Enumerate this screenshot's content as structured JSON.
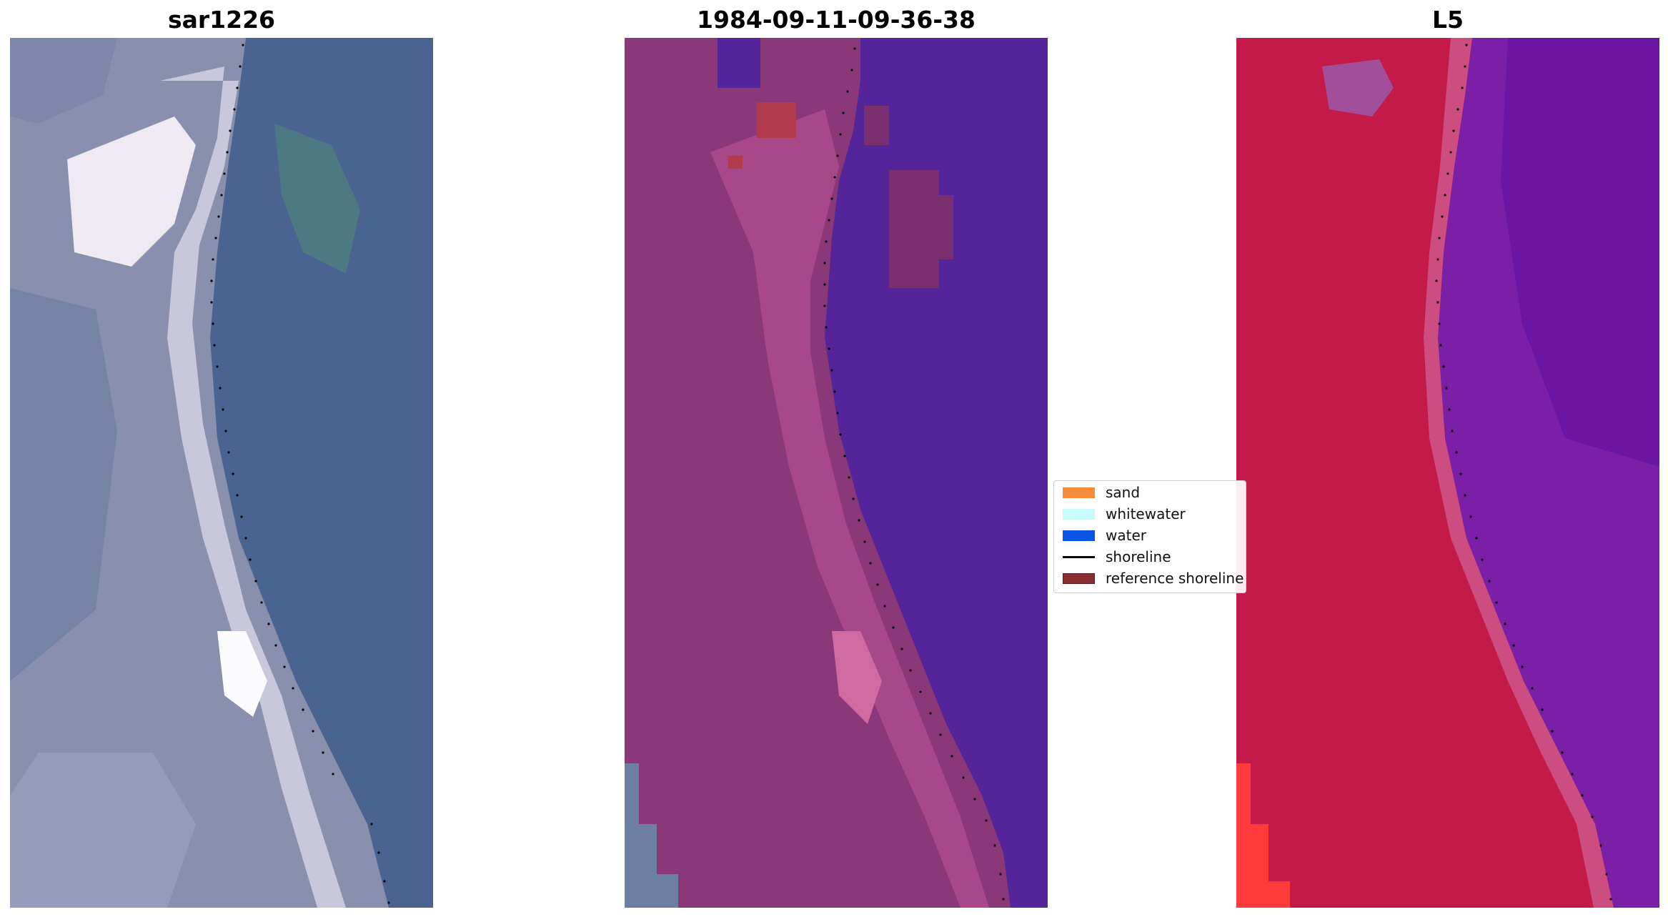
{
  "panels": [
    {
      "title": "sar1226"
    },
    {
      "title": "1984-09-11-09-36-38"
    },
    {
      "title": "L5"
    }
  ],
  "legend": {
    "items": [
      {
        "label": "sand",
        "kind": "patch",
        "color": "#f58d3c"
      },
      {
        "label": "whitewater",
        "kind": "patch",
        "color": "#c8fbfb"
      },
      {
        "label": "water",
        "kind": "patch",
        "color": "#0a55e6"
      },
      {
        "label": "shoreline",
        "kind": "line",
        "color": "#000000"
      },
      {
        "label": "reference shoreline",
        "kind": "patch",
        "color": "#8a2d33"
      }
    ]
  },
  "colors": {
    "rgb_land": "#8f96b3",
    "rgb_water": "#476290",
    "rgb_bright": "#f3eef6",
    "class_land": "#8d3a76",
    "class_water": "#52249a",
    "class_sand_highlight": "#c4468a",
    "l5_land": "#c31648",
    "l5_water": "#7a1fa6"
  }
}
